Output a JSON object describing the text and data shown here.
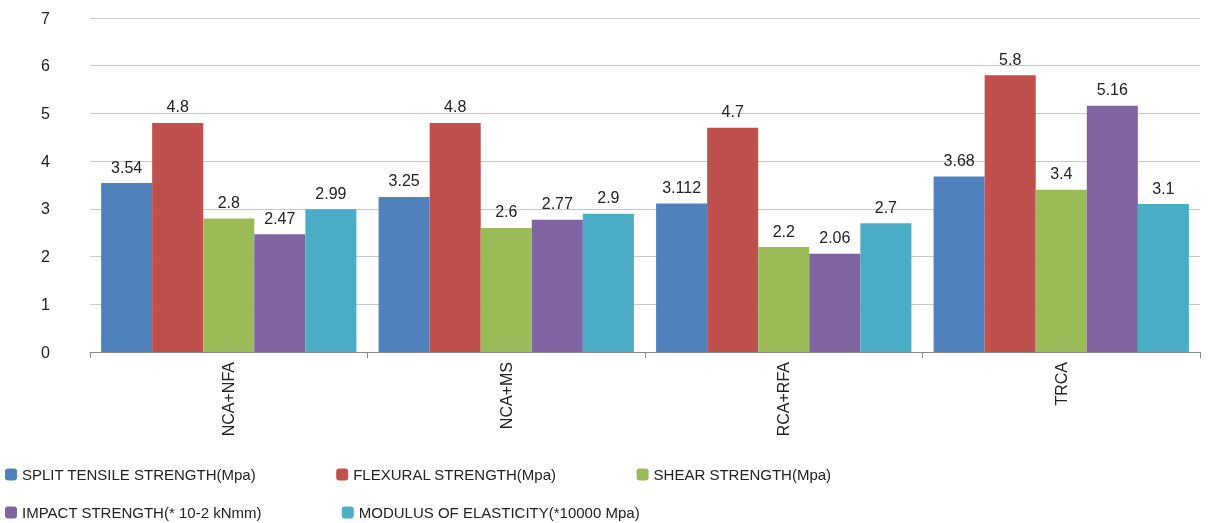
{
  "chart_data": {
    "type": "bar",
    "categories": [
      "NCA+NFA",
      "NCA+MS",
      "RCA+RFA",
      "TRCA"
    ],
    "series": [
      {
        "name": "SPLIT TENSILE STRENGTH(Mpa)",
        "color": "#4f81bd",
        "values": [
          3.54,
          3.25,
          3.112,
          3.68
        ]
      },
      {
        "name": "FLEXURAL STRENGTH(Mpa)",
        "color": "#c0504d",
        "values": [
          4.8,
          4.8,
          4.7,
          5.8
        ]
      },
      {
        "name": "SHEAR STRENGTH(Mpa)",
        "color": "#9bbb59",
        "values": [
          2.8,
          2.6,
          2.2,
          3.4
        ]
      },
      {
        "name": "IMPACT STRENGTH(* 10-2 kNmm)",
        "color": "#8064a2",
        "values": [
          2.47,
          2.77,
          2.06,
          5.16
        ]
      },
      {
        "name": "MODULUS OF ELASTICITY(*10000 Mpa)",
        "color": "#4bacc6",
        "values": [
          2.99,
          2.9,
          2.7,
          3.1
        ]
      }
    ],
    "ylim": [
      0,
      7
    ],
    "yticks": [
      0,
      1,
      2,
      3,
      4,
      5,
      6,
      7
    ],
    "grid": "y",
    "legend": "bottom",
    "data_labels": true
  }
}
